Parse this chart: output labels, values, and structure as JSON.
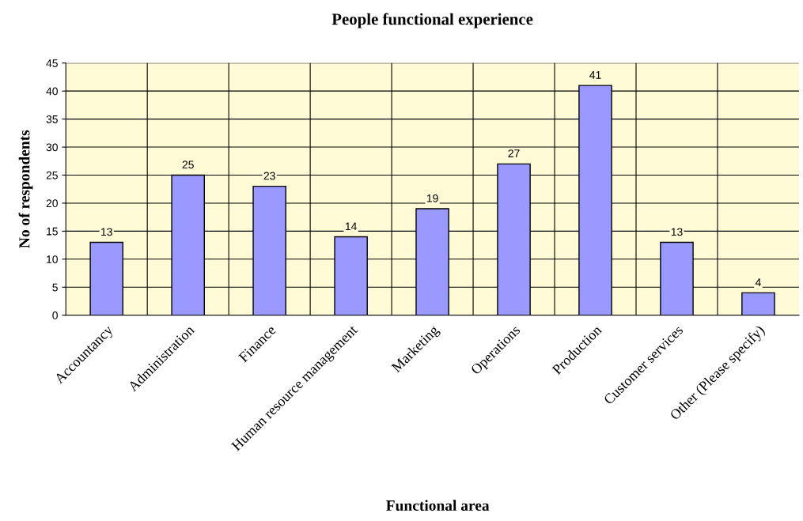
{
  "chart_data": {
    "type": "bar",
    "title": "People functional experience",
    "xlabel": "Functional area",
    "ylabel": "No of respondents",
    "categories": [
      "Accountancy",
      "Administration",
      "Finance",
      "Human resource management",
      "Marketing",
      "Operations",
      "Production",
      "Customer services",
      "Other (Please specify)"
    ],
    "values": [
      13,
      25,
      23,
      14,
      19,
      27,
      41,
      13,
      4
    ],
    "color": "#9999ff",
    "ylim": [
      0,
      45
    ],
    "yticks": [
      0,
      5,
      10,
      15,
      20,
      25,
      30,
      35,
      40,
      45
    ],
    "grid": true,
    "data_labels": true,
    "legend": false
  }
}
